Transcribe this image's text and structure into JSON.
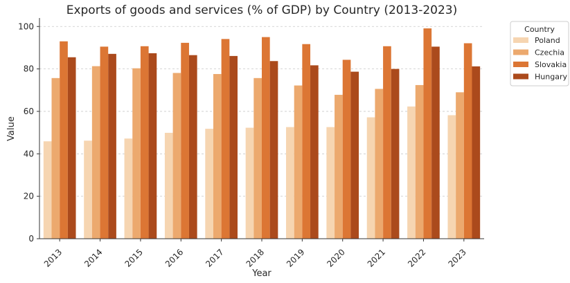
{
  "chart_data": {
    "type": "bar",
    "title": "Exports of goods and services (% of GDP) by Country (2013-2023)",
    "xlabel": "Year",
    "ylabel": "Value",
    "ylim": [
      0,
      104
    ],
    "yticks": [
      0,
      20,
      40,
      60,
      80,
      100
    ],
    "grid": "horizontal dashed",
    "legend_title": "Country",
    "legend_position": "outside-top-right",
    "categories": [
      "2013",
      "2014",
      "2015",
      "2016",
      "2017",
      "2018",
      "2019",
      "2020",
      "2021",
      "2022",
      "2023"
    ],
    "series": [
      {
        "name": "Poland",
        "color": "#f6d5b1",
        "values": [
          45.9,
          46.2,
          47.2,
          49.9,
          51.8,
          52.3,
          52.6,
          52.6,
          57.2,
          62.3,
          58.2
        ]
      },
      {
        "name": "Czechia",
        "color": "#eca96e",
        "values": [
          75.7,
          81.3,
          80.3,
          78.1,
          77.6,
          75.7,
          72.2,
          67.8,
          70.6,
          72.4,
          69.0
        ]
      },
      {
        "name": "Slovakia",
        "color": "#dc7634",
        "values": [
          93.0,
          90.5,
          90.7,
          92.3,
          94.1,
          95.0,
          91.7,
          84.3,
          90.7,
          99.1,
          92.1
        ]
      },
      {
        "name": "Hungary",
        "color": "#ab4a1c",
        "values": [
          85.5,
          87.1,
          87.4,
          86.5,
          86.1,
          83.7,
          81.7,
          78.7,
          80.0,
          90.5,
          81.2
        ]
      }
    ]
  }
}
